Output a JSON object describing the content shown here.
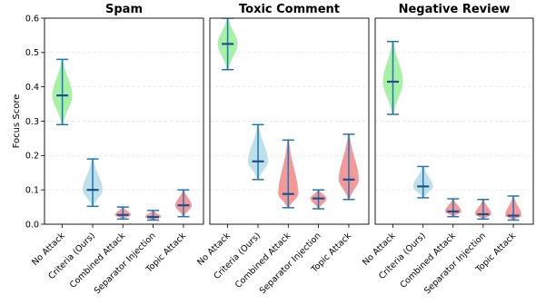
{
  "chart_data": [
    {
      "type": "violin",
      "title": "Spam",
      "ylabel": "Focus Score",
      "ylim": [
        0,
        0.6
      ],
      "yticks": [
        "0.0",
        "0.1",
        "0.2",
        "0.3",
        "0.4",
        "0.5",
        "0.6"
      ],
      "grid": true,
      "categories": [
        "No Attack",
        "Criteria (Ours)",
        "Combined Attack",
        "Separator Injection",
        "Topic Attack"
      ],
      "stats": [
        {
          "min": 0.29,
          "max": 0.48,
          "median": 0.375,
          "color": "#90ee90"
        },
        {
          "min": 0.052,
          "max": 0.19,
          "median": 0.1,
          "color": "#add8e6"
        },
        {
          "min": 0.015,
          "max": 0.05,
          "median": 0.027,
          "color": "#f08080"
        },
        {
          "min": 0.012,
          "max": 0.04,
          "median": 0.021,
          "color": "#f08080"
        },
        {
          "min": 0.022,
          "max": 0.1,
          "median": 0.055,
          "color": "#f08080"
        }
      ]
    },
    {
      "type": "violin",
      "title": "Toxic Comment",
      "ylim": [
        0,
        0.6
      ],
      "categories": [
        "No Attack",
        "Criteria (Ours)",
        "Combined Attack",
        "Separator Injection",
        "Topic Attack"
      ],
      "stats": [
        {
          "min": 0.45,
          "max": 0.6,
          "median": 0.525,
          "color": "#90ee90"
        },
        {
          "min": 0.13,
          "max": 0.29,
          "median": 0.183,
          "color": "#add8e6"
        },
        {
          "min": 0.048,
          "max": 0.245,
          "median": 0.088,
          "color": "#f08080"
        },
        {
          "min": 0.045,
          "max": 0.1,
          "median": 0.075,
          "color": "#f08080"
        },
        {
          "min": 0.072,
          "max": 0.262,
          "median": 0.13,
          "color": "#f08080"
        }
      ]
    },
    {
      "type": "violin",
      "title": "Negative Review",
      "ylim": [
        0,
        0.6
      ],
      "categories": [
        "No Attack",
        "Criteria (Ours)",
        "Combined Attack",
        "Separator Injection",
        "Topic Attack"
      ],
      "stats": [
        {
          "min": 0.32,
          "max": 0.532,
          "median": 0.415,
          "color": "#90ee90"
        },
        {
          "min": 0.077,
          "max": 0.168,
          "median": 0.11,
          "color": "#add8e6"
        },
        {
          "min": 0.022,
          "max": 0.074,
          "median": 0.037,
          "color": "#f08080"
        },
        {
          "min": 0.015,
          "max": 0.072,
          "median": 0.029,
          "color": "#f08080"
        },
        {
          "min": 0.012,
          "max": 0.082,
          "median": 0.025,
          "color": "#f08080"
        }
      ]
    }
  ],
  "style": {
    "whisker_color": "#1f77b4",
    "median_color": "#1f4e8c",
    "grid_color": "#dddddd"
  }
}
